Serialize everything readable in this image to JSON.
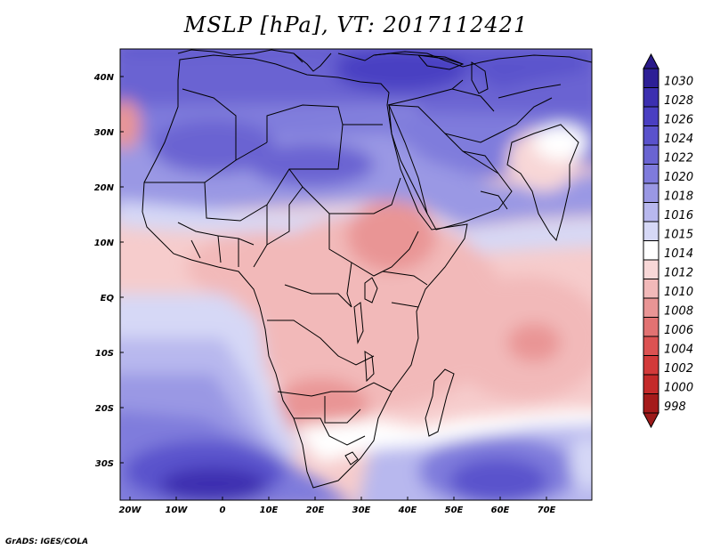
{
  "title": "MSLP [hPa], VT: 2017112421",
  "credit": "GrADS: IGES/COLA",
  "axes": {
    "x_ticks": [
      "20W",
      "10W",
      "0",
      "10E",
      "20E",
      "30E",
      "40E",
      "50E",
      "60E",
      "70E"
    ],
    "y_ticks": [
      "40N",
      "30N",
      "20N",
      "10N",
      "EQ",
      "10S",
      "20S",
      "30S"
    ]
  },
  "colorbar": {
    "labels": [
      "1030",
      "1028",
      "1026",
      "1024",
      "1022",
      "1020",
      "1018",
      "1016",
      "1015",
      "1014",
      "1012",
      "1010",
      "1008",
      "1006",
      "1004",
      "1002",
      "1000",
      "998"
    ],
    "colors": [
      "#2d1f96",
      "#3c2fb0",
      "#4a3fc2",
      "#5a52cc",
      "#6a64d2",
      "#7f7bdc",
      "#9a98e4",
      "#b8b8ee",
      "#d6d8f6",
      "#ffffff",
      "#f8d7d7",
      "#f2b9b9",
      "#e99595",
      "#e27272",
      "#dc5252",
      "#d33a3a",
      "#c42a2a",
      "#a51a1a"
    ],
    "tip_top": "#2a1a8a",
    "tip_bottom": "#9c1a1a"
  }
}
